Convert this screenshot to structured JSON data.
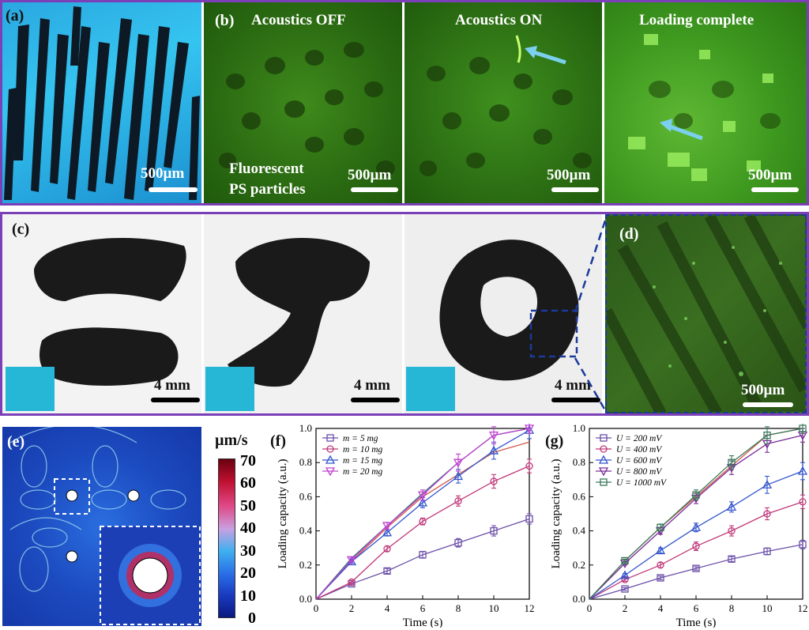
{
  "panels": {
    "a": {
      "label": "(a)",
      "scale": "500µm"
    },
    "b": {
      "label": "(b)",
      "titles": [
        "Acoustics OFF",
        "Acoustics ON",
        "Loading complete"
      ],
      "caption_line1": "Fluorescent",
      "caption_line2": "PS particles",
      "scale": "500µm"
    },
    "c": {
      "label": "(c)",
      "scale": "4 mm"
    },
    "d": {
      "label": "(d)",
      "scale": "500µm"
    },
    "e": {
      "label": "(e)",
      "colorbar_unit": "µm/s",
      "colorbar_ticks": [
        "70",
        "60",
        "50",
        "40",
        "30",
        "20",
        "10",
        "0"
      ]
    },
    "f": {
      "label": "(f)"
    },
    "g": {
      "label": "(g)"
    }
  },
  "colors": {
    "frame": "#7b3fb8",
    "arrow": "#7ad0ee",
    "purple": "#8e24aa",
    "cyan": "#26b6d6"
  },
  "chart_data": [
    {
      "type": "line",
      "panel": "f",
      "xlabel": "Time (s)",
      "ylabel": "Loading capacity (a.u.)",
      "xlim": [
        0,
        12
      ],
      "ylim": [
        0,
        1.0
      ],
      "xticks": [
        "0",
        "2",
        "4",
        "6",
        "8",
        "10",
        "12"
      ],
      "yticks": [
        "0.0",
        "0.2",
        "0.4",
        "0.6",
        "0.8",
        "1.0"
      ],
      "legend_position": "top-left",
      "x": [
        0,
        2,
        4,
        6,
        8,
        10,
        12
      ],
      "series": [
        {
          "name": "m =   5 mg",
          "color": "#6b4fa8",
          "marker": "square",
          "values": [
            0,
            0.09,
            0.165,
            0.26,
            0.33,
            0.4,
            0.47
          ],
          "errors": [
            0,
            0.01,
            0.015,
            0.02,
            0.025,
            0.03,
            0.03
          ]
        },
        {
          "name": "m = 10 mg",
          "color": "#c0397a",
          "marker": "circle",
          "values": [
            0,
            0.1,
            0.295,
            0.455,
            0.575,
            0.69,
            0.78
          ],
          "errors": [
            0,
            0.01,
            0.015,
            0.02,
            0.03,
            0.04,
            0.04
          ]
        },
        {
          "name": "m = 15 mg",
          "color": "#3355cc",
          "marker": "triangle-up",
          "values": [
            0,
            0.22,
            0.39,
            0.565,
            0.72,
            0.87,
            0.99
          ],
          "errors": [
            0,
            0.01,
            0.02,
            0.03,
            0.04,
            0.05,
            0.05
          ]
        },
        {
          "name": "m = 20 mg",
          "color": "#c040d0",
          "marker": "triangle-down",
          "values": [
            0,
            0.23,
            0.43,
            0.61,
            0.8,
            0.96,
            1.0
          ],
          "errors": [
            0,
            0.01,
            0.02,
            0.03,
            0.05,
            0.05,
            0.03
          ]
        }
      ],
      "fit_lines": [
        {
          "color": "#d25a4a",
          "x": [
            0,
            2,
            4,
            6,
            8,
            10,
            12
          ],
          "values": [
            0,
            0.22,
            0.42,
            0.6,
            0.73,
            0.86,
            0.92
          ]
        },
        {
          "color": "#2a7a6e",
          "x": [
            0,
            2,
            4,
            6,
            8,
            10,
            12
          ],
          "values": [
            0,
            0.24,
            0.43,
            0.62,
            0.8,
            0.96,
            1.0
          ]
        }
      ]
    },
    {
      "type": "line",
      "panel": "g",
      "xlabel": "Time (s)",
      "ylabel": "Loading capacity (a.u.)",
      "xlim": [
        0,
        12
      ],
      "ylim": [
        0,
        1.0
      ],
      "xticks": [
        "0",
        "2",
        "4",
        "6",
        "8",
        "10",
        "12"
      ],
      "yticks": [
        "0.0",
        "0.2",
        "0.4",
        "0.6",
        "0.8",
        "1.0"
      ],
      "legend_position": "top-left",
      "x": [
        0,
        2,
        4,
        6,
        8,
        10,
        12
      ],
      "series": [
        {
          "name": "U = 200 mV",
          "color": "#6b4fa8",
          "marker": "square",
          "values": [
            0,
            0.06,
            0.125,
            0.18,
            0.235,
            0.28,
            0.32
          ],
          "errors": [
            0,
            0.008,
            0.01,
            0.01,
            0.015,
            0.02,
            0.025
          ]
        },
        {
          "name": "U = 400 mV",
          "color": "#c0397a",
          "marker": "circle",
          "values": [
            0,
            0.115,
            0.2,
            0.31,
            0.4,
            0.5,
            0.57
          ],
          "errors": [
            0,
            0.01,
            0.015,
            0.025,
            0.03,
            0.035,
            0.04
          ]
        },
        {
          "name": "U = 600 mV",
          "color": "#3355cc",
          "marker": "triangle-up",
          "values": [
            0,
            0.14,
            0.285,
            0.42,
            0.54,
            0.67,
            0.75
          ],
          "errors": [
            0,
            0.01,
            0.015,
            0.025,
            0.03,
            0.05,
            0.05
          ]
        },
        {
          "name": "U = 800 mV",
          "color": "#7a2a9a",
          "marker": "triangle-down",
          "values": [
            0,
            0.21,
            0.4,
            0.59,
            0.77,
            0.91,
            0.96
          ],
          "errors": [
            0,
            0.01,
            0.02,
            0.03,
            0.04,
            0.05,
            0.04
          ]
        },
        {
          "name": "U = 1000 mV",
          "color": "#3a7a5a",
          "marker": "square",
          "values": [
            0,
            0.225,
            0.42,
            0.61,
            0.8,
            0.96,
            1.0
          ],
          "errors": [
            0,
            0.01,
            0.02,
            0.03,
            0.04,
            0.05,
            0.03
          ]
        }
      ],
      "fit_lines": [
        {
          "color": "#d25a4a",
          "x": [
            0,
            2,
            4,
            6,
            8,
            10,
            12
          ],
          "values": [
            0,
            0.225,
            0.42,
            0.6,
            0.78,
            0.96,
            1.0
          ]
        }
      ]
    }
  ]
}
